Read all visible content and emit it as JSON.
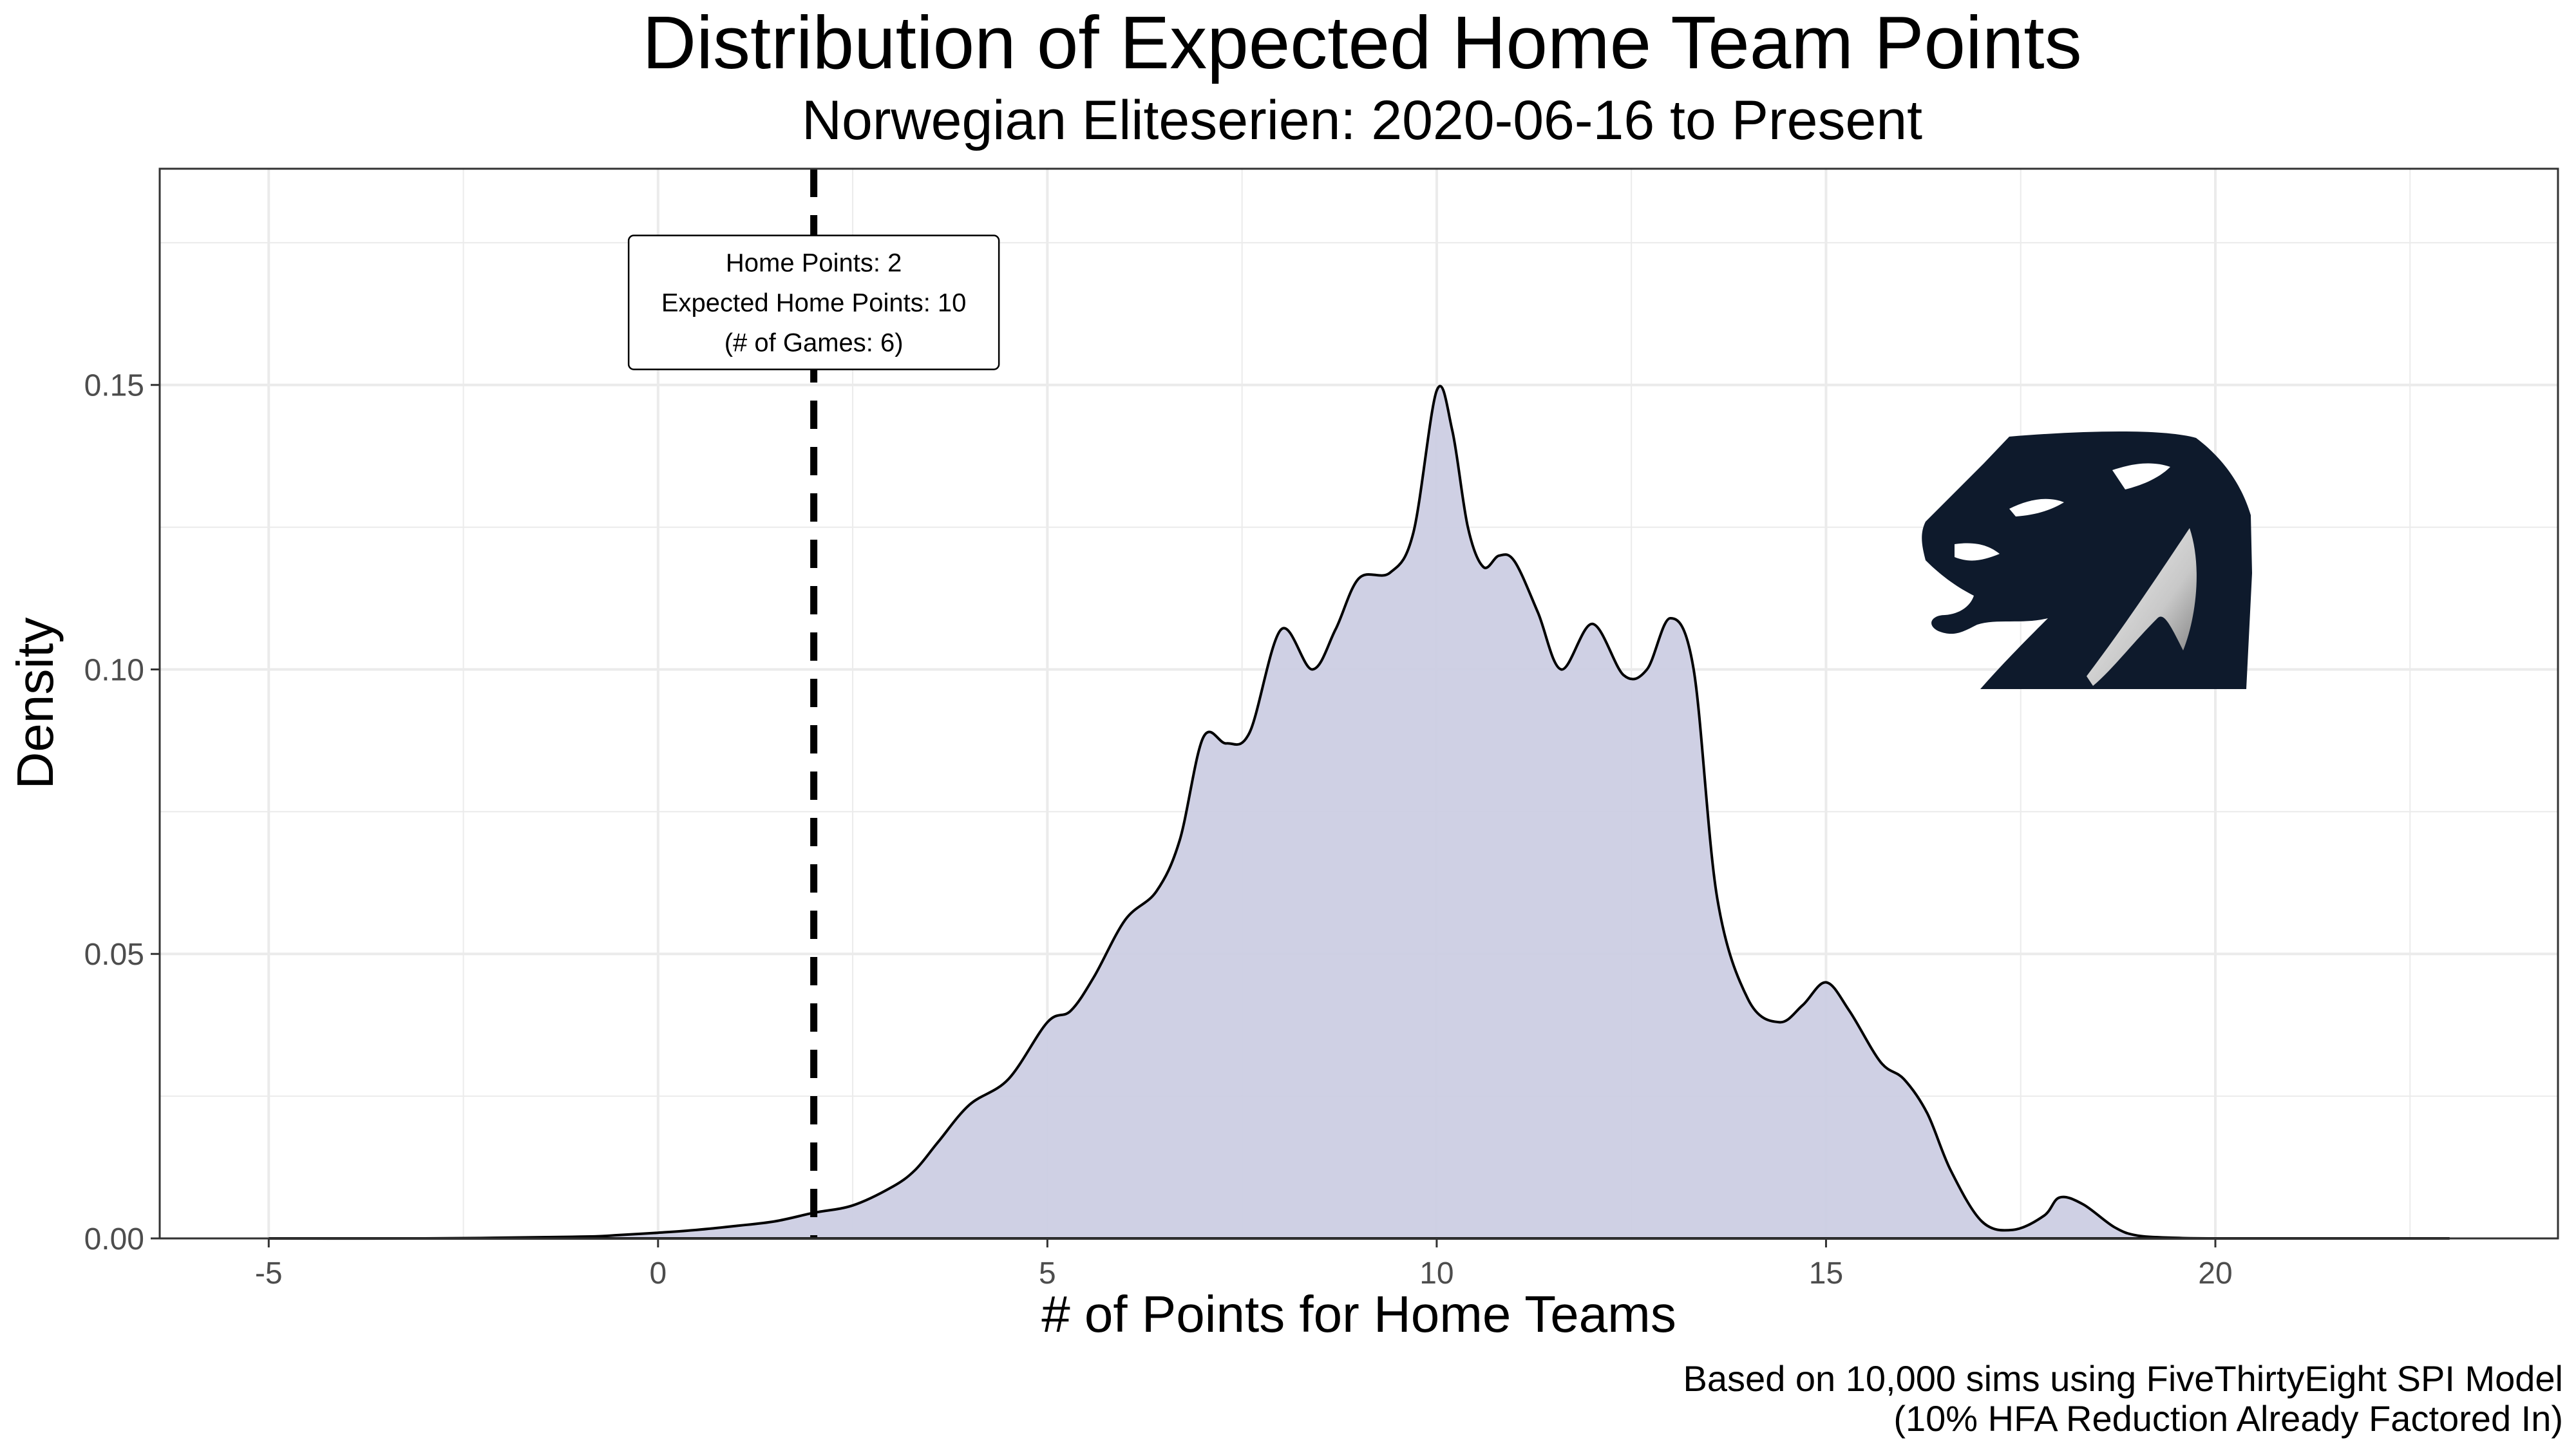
{
  "chart_data": {
    "type": "area",
    "title": "Distribution of Expected Home Team Points",
    "subtitle": "Norwegian Eliteserien: 2020-06-16 to Present",
    "xlabel": "# of Points for Home Teams",
    "ylabel": "Density",
    "xlim": [
      -6.4,
      24.4
    ],
    "ylim": [
      0,
      0.188
    ],
    "x_ticks": [
      -5,
      0,
      5,
      10,
      15,
      20
    ],
    "x_tick_labels": [
      "-5",
      "0",
      "5",
      "10",
      "15",
      "20"
    ],
    "y_ticks": [
      0,
      0.05,
      0.1,
      0.15
    ],
    "y_tick_labels": [
      "0.00",
      "0.05",
      "0.10",
      "0.15"
    ],
    "grid": true,
    "series": [
      {
        "fill_color": "#cccde3",
        "line_color": "#000000",
        "x": [
          -5,
          -3,
          -1,
          -0.5,
          0,
          0.5,
          1,
          1.5,
          2,
          2.5,
          3,
          3.3,
          3.6,
          4,
          4.5,
          5,
          5.3,
          5.6,
          6,
          6.4,
          6.7,
          7,
          7.3,
          7.6,
          8,
          8.4,
          8.7,
          9,
          9.4,
          9.7,
          10,
          10.2,
          10.4,
          10.6,
          10.8,
          11,
          11.3,
          11.6,
          12,
          12.4,
          12.7,
          13,
          13.3,
          13.6,
          14,
          14.4,
          14.7,
          15,
          15.3,
          15.7,
          16,
          16.3,
          16.6,
          17,
          17.4,
          17.8,
          18,
          18.3,
          18.7,
          19,
          19.5,
          20,
          21,
          23
        ],
        "y": [
          0.0,
          0.0,
          0.0003,
          0.0006,
          0.001,
          0.0015,
          0.0022,
          0.003,
          0.0045,
          0.0058,
          0.009,
          0.012,
          0.017,
          0.0235,
          0.028,
          0.038,
          0.04,
          0.046,
          0.056,
          0.061,
          0.07,
          0.088,
          0.087,
          0.089,
          0.107,
          0.1,
          0.107,
          0.116,
          0.117,
          0.124,
          0.149,
          0.142,
          0.125,
          0.118,
          0.12,
          0.119,
          0.11,
          0.1,
          0.108,
          0.099,
          0.1,
          0.109,
          0.1,
          0.06,
          0.042,
          0.038,
          0.041,
          0.045,
          0.04,
          0.031,
          0.028,
          0.022,
          0.012,
          0.003,
          0.0015,
          0.004,
          0.0072,
          0.006,
          0.002,
          0.0005,
          0.0001,
          0.0,
          0.0,
          0.0
        ]
      }
    ],
    "vline": {
      "x": 2,
      "style": "dashed"
    },
    "annotation": {
      "x": 2,
      "y": 0.1645,
      "lines": [
        "Home Points: 2",
        "Expected Home Points: 10",
        "(# of Games: 6)"
      ]
    },
    "caption_lines": [
      "Based on 10,000 sims using FiveThirtyEight SPI Model",
      "(10% HFA Reduction Already Factored In)"
    ]
  },
  "logo": {
    "name": "team-crest-logo",
    "colors": {
      "primary": "#0e1a2c",
      "highlight": "#f2f2f2",
      "shade": "#9a9a9a"
    }
  }
}
